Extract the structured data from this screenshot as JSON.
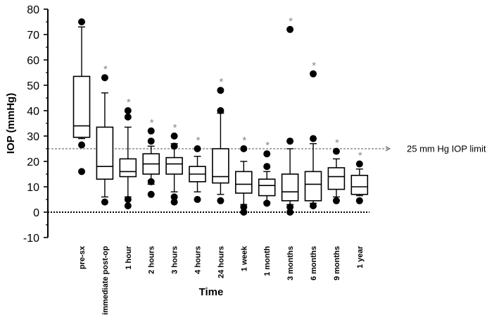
{
  "chart_data": {
    "type": "boxplot",
    "title": "",
    "xlabel": "Time",
    "ylabel": "IOP (mmHg)",
    "ylim": [
      -10,
      80
    ],
    "yticks": [
      -10,
      0,
      10,
      20,
      30,
      40,
      50,
      60,
      70,
      80
    ],
    "categories": [
      "pre-sx",
      "immediate post-op",
      "1 hour",
      "2 hours",
      "3 hours",
      "4 hours",
      "24 hours",
      "1 week",
      "1 month",
      "3 months",
      "6 months",
      "9 months",
      "1 year"
    ],
    "boxes": [
      {
        "label": "pre-sx",
        "whisker_low": 29,
        "q1": 29.5,
        "median": 34,
        "q3": 53.5,
        "whisker_high": 73,
        "outliers": [
          75,
          26.5,
          16
        ],
        "significant": false
      },
      {
        "label": "immediate post-op",
        "whisker_low": 6,
        "q1": 13,
        "median": 18,
        "q3": 33.5,
        "whisker_high": 47,
        "outliers": [
          53,
          4
        ],
        "significant": true
      },
      {
        "label": "1 hour",
        "whisker_low": 6,
        "q1": 14,
        "median": 16,
        "q3": 21,
        "whisker_high": 33.5,
        "outliers": [
          40,
          37.5,
          5,
          2.5
        ],
        "significant": true
      },
      {
        "label": "2 hours",
        "whisker_low": 11,
        "q1": 15,
        "median": 19,
        "q3": 23,
        "whisker_high": 26,
        "outliers": [
          32,
          28,
          12,
          7
        ],
        "significant": true
      },
      {
        "label": "3 hours",
        "whisker_low": 8,
        "q1": 15,
        "median": 19,
        "q3": 21.5,
        "whisker_high": 27,
        "outliers": [
          30,
          26,
          6,
          4
        ],
        "significant": true
      },
      {
        "label": "4 hours",
        "whisker_low": 8,
        "q1": 12,
        "median": 15,
        "q3": 18,
        "whisker_high": 22,
        "outliers": [
          25,
          5
        ],
        "significant": true
      },
      {
        "label": "24 hours",
        "whisker_low": 7,
        "q1": 11.5,
        "median": 14,
        "q3": 25,
        "whisker_high": 39,
        "outliers": [
          48,
          40,
          4.5
        ],
        "significant": true
      },
      {
        "label": "1 week",
        "whisker_low": 3,
        "q1": 7.5,
        "median": 11,
        "q3": 16,
        "whisker_high": 20,
        "outliers": [
          25,
          2,
          0
        ],
        "significant": true
      },
      {
        "label": "1 month",
        "whisker_low": 4,
        "q1": 6.5,
        "median": 10.5,
        "q3": 13,
        "whisker_high": 16,
        "outliers": [
          23,
          18,
          3.5
        ],
        "significant": true
      },
      {
        "label": "3 months",
        "whisker_low": 3,
        "q1": 4.5,
        "median": 8,
        "q3": 15,
        "whisker_high": 25,
        "outliers": [
          72,
          28,
          2,
          0
        ],
        "significant": true
      },
      {
        "label": "6 months",
        "whisker_low": 3.5,
        "q1": 4.5,
        "median": 11,
        "q3": 16,
        "whisker_high": 27,
        "outliers": [
          54.5,
          29,
          2.5
        ],
        "significant": true
      },
      {
        "label": "9 months",
        "whisker_low": 6,
        "q1": 9,
        "median": 14,
        "q3": 17.5,
        "whisker_high": 21,
        "outliers": [
          24,
          4.5
        ],
        "significant": true
      },
      {
        "label": "1 year",
        "whisker_low": 6.5,
        "q1": 7,
        "median": 10,
        "q3": 14.5,
        "whisker_high": 17,
        "outliers": [
          19,
          4.5
        ],
        "significant": true
      }
    ],
    "significance_marker": "*",
    "reference_lines": [
      {
        "value": 25,
        "label": "25 mm Hg IOP limit",
        "style": "dashed"
      },
      {
        "value": 0,
        "label": "",
        "style": "dotted"
      }
    ]
  }
}
